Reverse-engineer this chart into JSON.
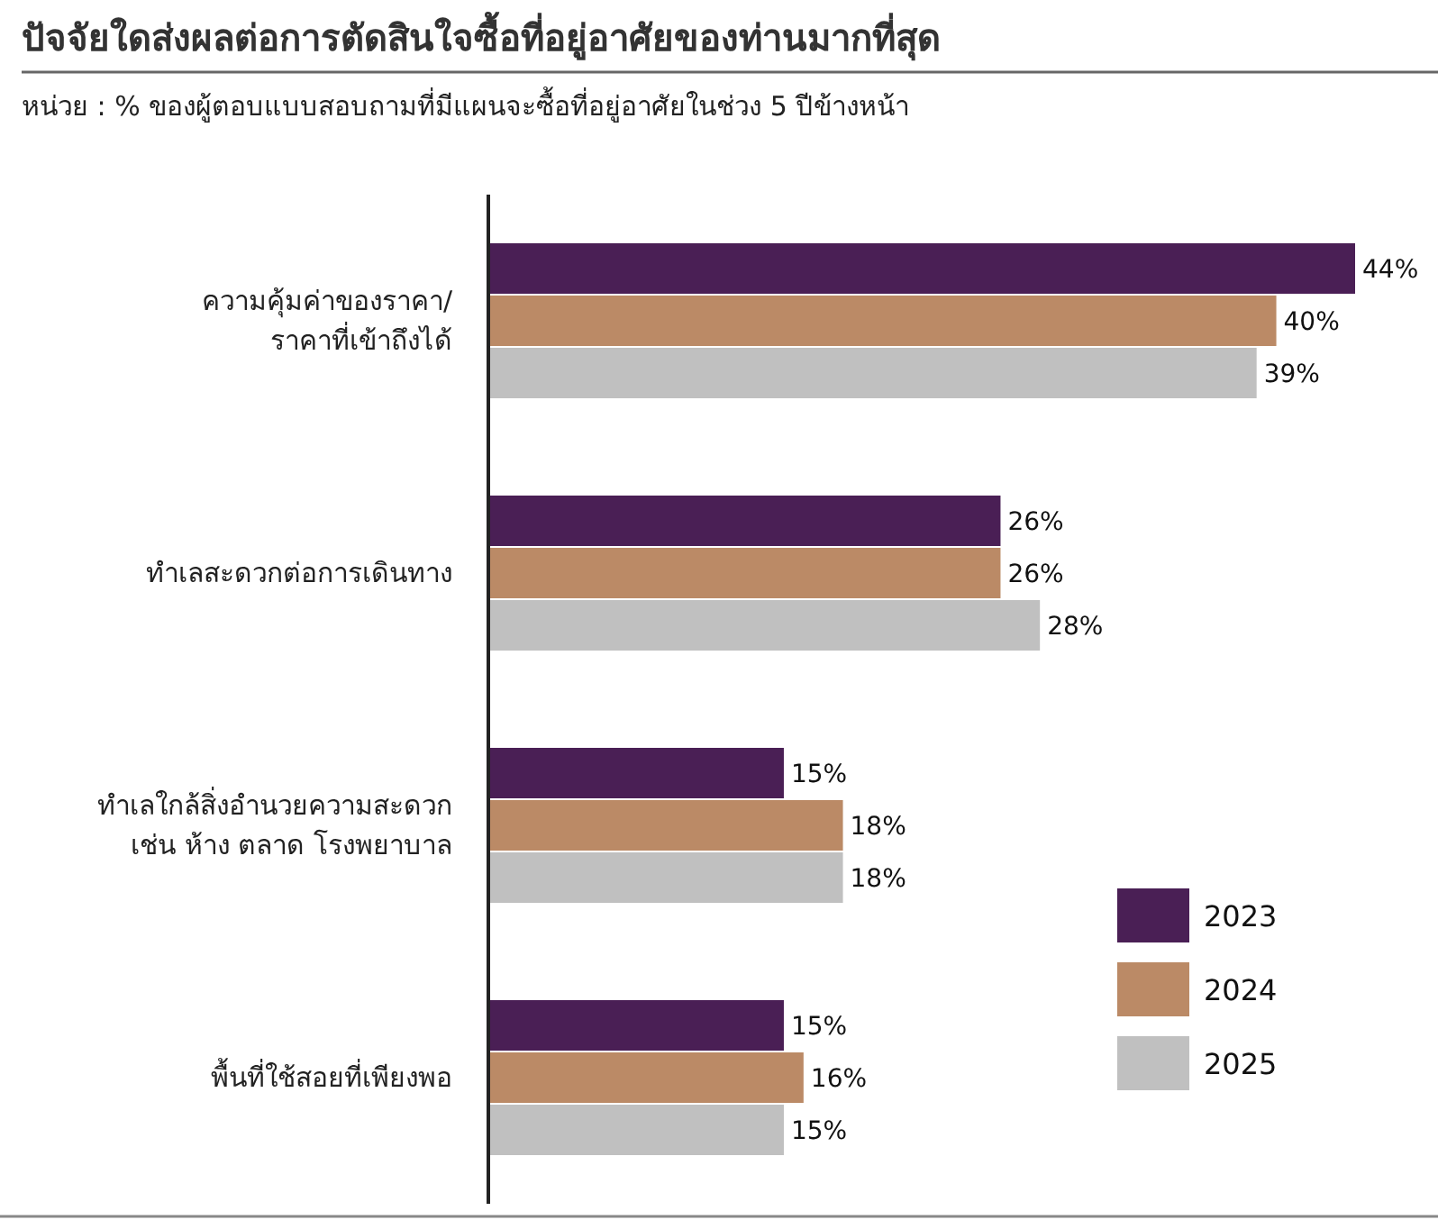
{
  "chart_data": {
    "type": "bar",
    "orientation": "horizontal",
    "title": "ปัจจัยใดส่งผลต่อการตัดสินใจซื้อที่อยู่อาศัยของท่านมากที่สุด",
    "subtitle": "หน่วย : % ของผู้ตอบแบบสอบถามที่มีแผนจะซื้อที่อยู่อาศัยในช่วง 5 ปีข้างหน้า",
    "categories": [
      "ความคุ้มค่าของราคา/\nราคาที่เข้าถึงได้",
      "ทำเลสะดวกต่อการเดินทาง",
      "ทำเลใกล้สิ่งอำนวยความสะดวก\nเช่น ห้าง ตลาด โรงพยาบาล",
      "พื้นที่ใช้สอยที่เพียงพอ"
    ],
    "series": [
      {
        "name": "2023",
        "color": "#4a1f55",
        "values": [
          44,
          26,
          15,
          15
        ],
        "value_labels": [
          "44%",
          "26%",
          "15%",
          "15%"
        ]
      },
      {
        "name": "2024",
        "color": "#bb8a66",
        "values": [
          40,
          26,
          18,
          16
        ],
        "value_labels": [
          "40%",
          "26%",
          "18%",
          "16%"
        ]
      },
      {
        "name": "2025",
        "color": "#c0c0c0",
        "values": [
          39,
          28,
          18,
          15
        ],
        "value_labels": [
          "39%",
          "28%",
          "18%",
          "15%"
        ]
      }
    ],
    "legend": "bottom right"
  }
}
